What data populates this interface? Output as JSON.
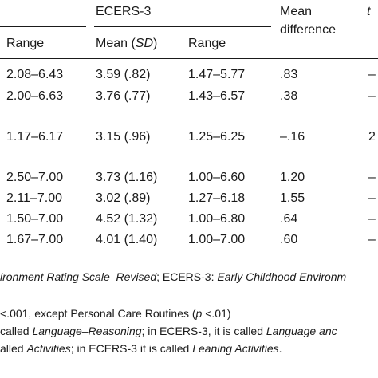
{
  "header": {
    "ecers3": "ECERS-3",
    "mean_difference_line1": "Mean",
    "mean_difference_line2": "difference",
    "t": "t",
    "range_left": "Range",
    "mean_sd_prefix": "Mean (",
    "mean_sd_italic": "SD",
    "mean_sd_suffix": ")",
    "range_right": "Range"
  },
  "rows": [
    {
      "range1": "2.08–6.43",
      "mean": "3.59 (.82)",
      "range2": "1.47–5.77",
      "diff": ".83",
      "t": "–"
    },
    {
      "range1": "2.00–6.63",
      "mean": "3.76 (.77)",
      "range2": "1.43–6.57",
      "diff": ".38",
      "t": "–"
    },
    {
      "range1": "1.17–6.17",
      "mean": "3.15 (.96)",
      "range2": "1.25–6.25",
      "diff": "–.16",
      "t": "2"
    },
    {
      "range1": "2.50–7.00",
      "mean": "3.73 (1.16)",
      "range2": "1.00–6.60",
      "diff": "1.20",
      "t": "–"
    },
    {
      "range1": "2.11–7.00",
      "mean": "3.02 (.89)",
      "range2": "1.27–6.18",
      "diff": "1.55",
      "t": "–"
    },
    {
      "range1": "1.50–7.00",
      "mean": "4.52 (1.32)",
      "range2": "1.00–6.80",
      "diff": ".64",
      "t": "–"
    },
    {
      "range1": "1.67–7.00",
      "mean": "4.01 (1.40)",
      "range2": "1.00–7.00",
      "diff": ".60",
      "t": "–"
    }
  ],
  "notes": {
    "line1_italic_a": "ironment Rating Scale–Revised",
    "line1_mid": "; ECERS-3: ",
    "line1_italic_b": "Early Childhood Environm",
    "line2_a": "<.001, except Personal Care Routines (",
    "line2_p": "p",
    "line2_b": " <.01)",
    "line3_a": "called ",
    "line3_italic_a": "Language–Reasoning",
    "line3_b": "; in ECERS-3, it is called ",
    "line3_italic_b": "Language anc",
    "line4_a": "alled ",
    "line4_italic_a": "Activities",
    "line4_b": "; in ECERS-3 it is called ",
    "line4_italic_b": "Leaning Activities",
    "line4_c": "."
  }
}
